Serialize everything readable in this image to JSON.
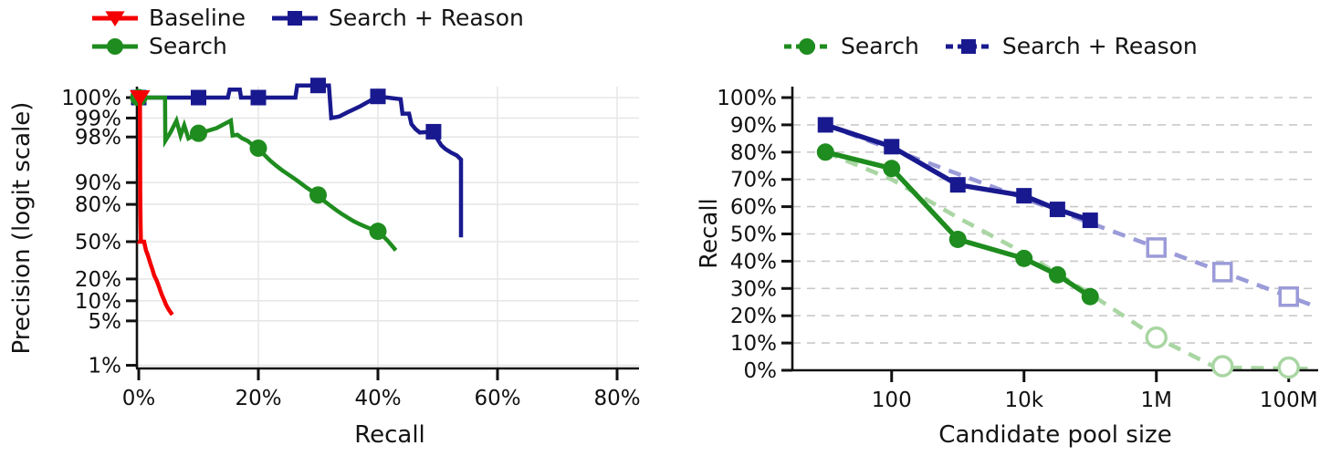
{
  "figure": {
    "background": "#ffffff"
  },
  "chart_data": [
    {
      "type": "line",
      "panel": "left",
      "title": "",
      "xlabel": "Recall",
      "ylabel": "Precision (logit scale)",
      "x_unit": "percent",
      "xlim": [
        -1.5,
        83.7
      ],
      "x_ticks": [
        {
          "value": 0,
          "label": "0%"
        },
        {
          "value": 20,
          "label": "20%"
        },
        {
          "value": 40,
          "label": "40%"
        },
        {
          "value": 60,
          "label": "60%"
        },
        {
          "value": 80,
          "label": "80%"
        }
      ],
      "y_scale": "logit",
      "y_ticks": [
        {
          "value": 1,
          "label": "1%"
        },
        {
          "value": 5,
          "label": "5%"
        },
        {
          "value": 10,
          "label": "10%"
        },
        {
          "value": 20,
          "label": "20%"
        },
        {
          "value": 50,
          "label": "50%"
        },
        {
          "value": 80,
          "label": "80%"
        },
        {
          "value": 90,
          "label": "90%"
        },
        {
          "value": 98,
          "label": "98%"
        },
        {
          "value": 99,
          "label": "99%"
        },
        {
          "value": 100,
          "label": "100%"
        }
      ],
      "grid": {
        "horizontal": true,
        "vertical": true,
        "style": "solid",
        "color": "#e7e7e7"
      },
      "legend_position": "top-left-two-rows",
      "series": [
        {
          "name": "Baseline",
          "color": "#f50000",
          "marker": "triangle-down",
          "line_style": "solid",
          "points": [
            [
              0.2,
              100
            ],
            [
              0.25,
              85
            ],
            [
              0.3,
              65
            ],
            [
              0.35,
              52
            ],
            [
              0.2,
              50
            ],
            [
              0.9,
              50
            ],
            [
              1.0,
              47
            ],
            [
              1.2,
              42
            ],
            [
              1.5,
              38
            ],
            [
              1.8,
              33
            ],
            [
              2.0,
              30
            ],
            [
              2.3,
              26
            ],
            [
              2.6,
              22
            ],
            [
              3.0,
              19
            ],
            [
              3.3,
              16.5
            ],
            [
              3.6,
              14
            ],
            [
              3.9,
              12
            ],
            [
              4.2,
              10.5
            ],
            [
              4.5,
              9
            ],
            [
              4.8,
              8
            ],
            [
              5.1,
              7.2
            ],
            [
              5.4,
              6.6
            ],
            [
              5.6,
              6.2
            ]
          ],
          "marker_points": [
            [
              0.2,
              100
            ]
          ]
        },
        {
          "name": "Search",
          "color": "#1e8c1e",
          "marker": "circle",
          "line_style": "solid",
          "points": [
            [
              0,
              100
            ],
            [
              4.4,
              100
            ],
            [
              4.45,
              97.7
            ],
            [
              5.3,
              98.3
            ],
            [
              6.3,
              98.9
            ],
            [
              7.0,
              98.1
            ],
            [
              7.6,
              98.7
            ],
            [
              8.3,
              97.9
            ],
            [
              9.2,
              98.1
            ],
            [
              10,
              98.25
            ],
            [
              11.5,
              98.4
            ],
            [
              13,
              98.55
            ],
            [
              15.4,
              98.9
            ],
            [
              15.7,
              98.1
            ],
            [
              16.5,
              98.15
            ],
            [
              17.3,
              97.9
            ],
            [
              18.2,
              97.7
            ],
            [
              19.1,
              97.3
            ],
            [
              20,
              97.0
            ],
            [
              21,
              96.2
            ],
            [
              22,
              95.3
            ],
            [
              23,
              94.4
            ],
            [
              24,
              93.4
            ],
            [
              25,
              92.4
            ],
            [
              26,
              91.3
            ],
            [
              27,
              89.9
            ],
            [
              28,
              88.3
            ],
            [
              29,
              86.7
            ],
            [
              30,
              85.0
            ],
            [
              31,
              82.0
            ],
            [
              32,
              79.3
            ],
            [
              33,
              76.5
            ],
            [
              34,
              73.6
            ],
            [
              35,
              70.8
            ],
            [
              36,
              68.0
            ],
            [
              37,
              65.6
            ],
            [
              38,
              63.4
            ],
            [
              39,
              61.4
            ],
            [
              40,
              59.5
            ],
            [
              40.8,
              55.5
            ],
            [
              41.6,
              51.0
            ],
            [
              42.3,
              46.5
            ],
            [
              43,
              42.0
            ]
          ],
          "marker_points": [
            [
              0,
              100
            ],
            [
              10,
              98.25
            ],
            [
              20,
              97.0
            ],
            [
              30,
              85.0
            ],
            [
              40,
              59.5
            ]
          ]
        },
        {
          "name": "Search + Reason",
          "color": "#19198f",
          "marker": "square",
          "line_style": "solid",
          "points": [
            [
              0,
              100
            ],
            [
              14.9,
              100
            ],
            [
              15.2,
              99.65
            ],
            [
              16.9,
              99.65
            ],
            [
              17.1,
              100
            ],
            [
              26.2,
              100
            ],
            [
              26.5,
              99.7
            ],
            [
              31.8,
              99.7
            ],
            [
              32.2,
              99.0
            ],
            [
              33.5,
              99.05
            ],
            [
              35,
              99.2
            ],
            [
              37,
              99.35
            ],
            [
              40,
              99.55
            ],
            [
              43.8,
              99.5
            ],
            [
              44.1,
              99.15
            ],
            [
              45.2,
              99.15
            ],
            [
              45.6,
              98.75
            ],
            [
              46.3,
              98.5
            ],
            [
              47,
              98.3
            ],
            [
              49.3,
              98.35
            ],
            [
              50,
              97.8
            ],
            [
              50.6,
              97.3
            ],
            [
              51.3,
              96.9
            ],
            [
              52.2,
              96.5
            ],
            [
              53.2,
              96.1
            ],
            [
              53.9,
              95.5
            ],
            [
              53.9,
              54
            ]
          ],
          "marker_points": [
            [
              0,
              100
            ],
            [
              10,
              100
            ],
            [
              20,
              100
            ],
            [
              30,
              99.7
            ],
            [
              40,
              99.55
            ],
            [
              49.3,
              98.35
            ]
          ]
        }
      ]
    },
    {
      "type": "line",
      "panel": "right",
      "title": "",
      "xlabel": "Candidate pool size",
      "ylabel": "Recall",
      "x_scale": "log10",
      "xlim_log10": [
        0.5,
        8.44
      ],
      "x_ticks": [
        {
          "value": 100,
          "label": "100"
        },
        {
          "value": 10000,
          "label": "10k"
        },
        {
          "value": 1000000,
          "label": "1M"
        },
        {
          "value": 100000000,
          "label": "100M"
        }
      ],
      "ylim": [
        0,
        100
      ],
      "y_ticks": [
        {
          "value": 0,
          "label": "0%"
        },
        {
          "value": 10,
          "label": "10%"
        },
        {
          "value": 20,
          "label": "20%"
        },
        {
          "value": 30,
          "label": "30%"
        },
        {
          "value": 40,
          "label": "40%"
        },
        {
          "value": 50,
          "label": "50%"
        },
        {
          "value": 60,
          "label": "60%"
        },
        {
          "value": 70,
          "label": "70%"
        },
        {
          "value": 80,
          "label": "80%"
        },
        {
          "value": 90,
          "label": "90%"
        },
        {
          "value": 100,
          "label": "100%"
        }
      ],
      "grid": {
        "horizontal": true,
        "vertical": false,
        "style": "dashed",
        "color": "#c9c9c9"
      },
      "legend_position": "top-center-one-row",
      "series": [
        {
          "name": "Search",
          "color": "#1e8c1e",
          "light_color": "#a9d6a3",
          "marker": "circle",
          "measured_points": [
            [
              10,
              80
            ],
            [
              100,
              74
            ],
            [
              1000,
              48
            ],
            [
              10000,
              41
            ],
            [
              32000,
              35
            ],
            [
              100000,
              27
            ]
          ],
          "extrapolated_points": [
            [
              1000000,
              12
            ],
            [
              10000000,
              1.5
            ],
            [
              100000000,
              1
            ]
          ],
          "trend_points": [
            [
              10,
              80
            ],
            [
              100,
              70
            ],
            [
              1000,
              56
            ],
            [
              10000,
              43
            ],
            [
              100000,
              28
            ],
            [
              1000000,
              12
            ],
            [
              8000000,
              1
            ],
            [
              260000000,
              0.5
            ]
          ]
        },
        {
          "name": "Search + Reason",
          "color": "#19198f",
          "light_color": "#9b9bd9",
          "marker": "square",
          "measured_points": [
            [
              10,
              90
            ],
            [
              100,
              82
            ],
            [
              1000,
              68
            ],
            [
              10000,
              64
            ],
            [
              32000,
              59
            ],
            [
              100000,
              55
            ]
          ],
          "extrapolated_points": [
            [
              1000000,
              45
            ],
            [
              10000000,
              36
            ],
            [
              100000000,
              27
            ]
          ],
          "trend_points": [
            [
              10,
              90
            ],
            [
              260000000,
              23.3
            ]
          ]
        }
      ]
    }
  ]
}
